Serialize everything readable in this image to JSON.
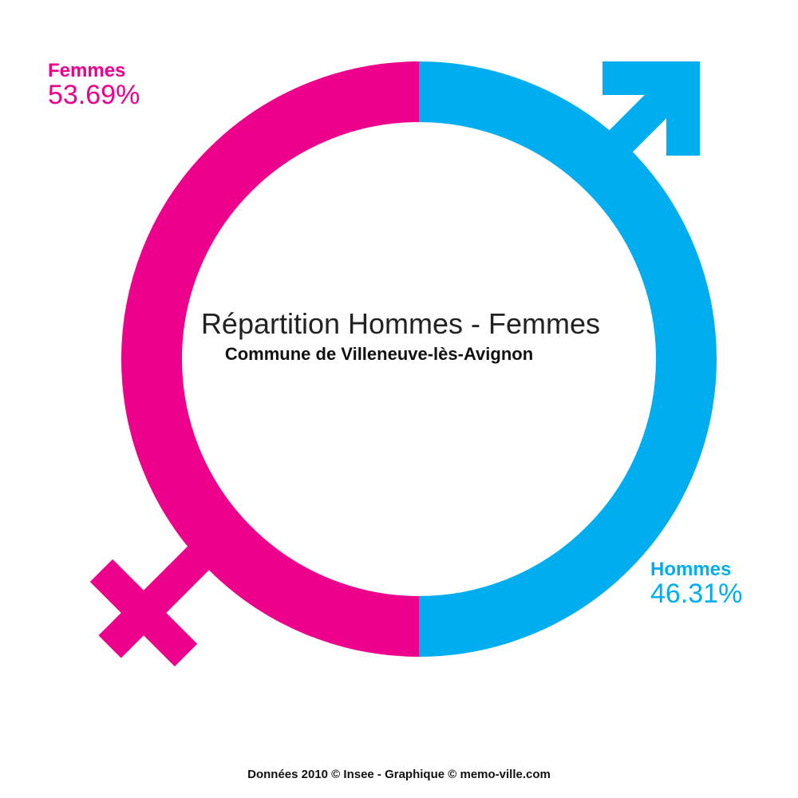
{
  "title": "Répartition Hommes - Femmes",
  "subtitle": "Commune de Villeneuve-lès-Avignon",
  "femmes": {
    "label": "Femmes",
    "value": "53.69%"
  },
  "hommes": {
    "label": "Hommes",
    "value": "46.31%"
  },
  "footer": "Données 2010 © Insee - Graphique © memo-ville.com"
}
